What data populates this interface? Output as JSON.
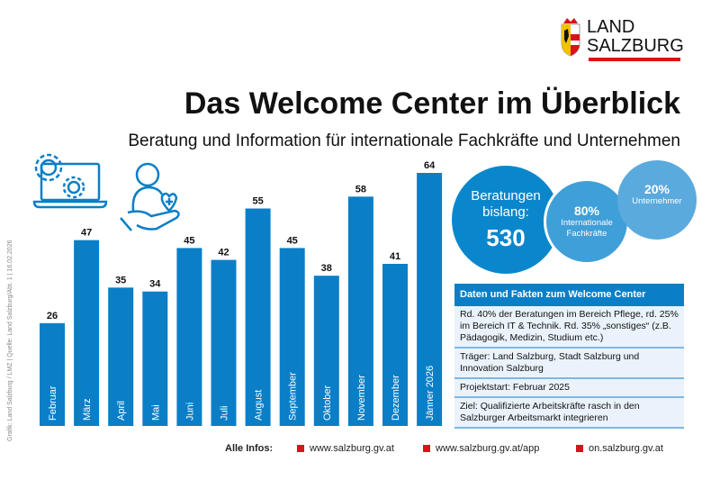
{
  "logo": {
    "line1": "LAND",
    "line2": "SALZBURG"
  },
  "title": "Das Welcome Center im Überblick",
  "subtitle": "Beratung und Information für internationale Fachkräfte und Unternehmen",
  "source": "Grafik: Land Salzburg / LMZ | Quelle: Land Salzburg/Abt. 1 | 16.02.2026",
  "colors": {
    "bar": "#0a7fc7",
    "accent_red": "#d7141a"
  },
  "icons": [
    "laptop-gears-icon",
    "hand-person-heart-icon"
  ],
  "chart_data": {
    "type": "bar",
    "categories": [
      "Februar",
      "März",
      "April",
      "Mai",
      "Juni",
      "Juli",
      "August",
      "September",
      "Oktober",
      "November",
      "Dezember",
      "Jänner 2026"
    ],
    "values": [
      26,
      47,
      35,
      34,
      45,
      42,
      55,
      45,
      38,
      58,
      41,
      64
    ],
    "title": "",
    "xlabel": "",
    "ylabel": "",
    "ylim": [
      0,
      64
    ],
    "grid": false
  },
  "circles": {
    "total": {
      "label": "Beratungen bislang:",
      "value": "530"
    },
    "fachkraefte": {
      "value": "80%",
      "label": "Internationale Fachkräfte"
    },
    "unternehmer": {
      "value": "20%",
      "label": "Unternehmer"
    }
  },
  "facts": {
    "header": "Daten und Fakten zum Welcome Center",
    "rows": [
      "Rd. 40% der Beratungen im Bereich Pflege, rd. 25% im Bereich IT & Technik. Rd. 35% „sonstiges“ (z.B. Pädagogik, Medizin, Studium etc.)",
      "Träger: Land Salzburg, Stadt Salzburg und Innovation Salzburg",
      "Projektstart: Februar 2025",
      "Ziel: Qualifizierte Arbeitskräfte rasch in den Salzburger Arbeitsmarkt integrieren"
    ]
  },
  "footer": {
    "label": "Alle Infos:",
    "links": [
      "www.salzburg.gv.at",
      "www.salzburg.gv.at/app",
      "on.salzburg.gv.at"
    ]
  }
}
